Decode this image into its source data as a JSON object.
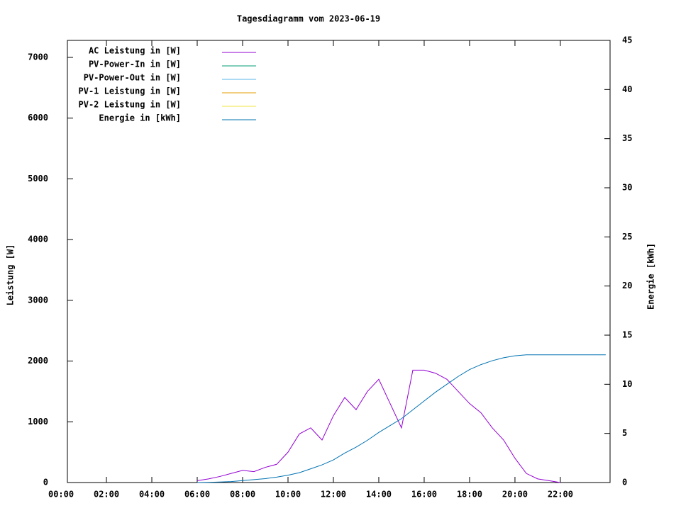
{
  "chart_data": {
    "type": "line",
    "title": "Tagesdiagramm vom 2023-06-19",
    "y_label": "Leistung [W]",
    "y2_label": "Energie [kWh]",
    "x": [
      6,
      6.5,
      7,
      7.5,
      8,
      8.5,
      9,
      9.5,
      10,
      10.5,
      11,
      11.5,
      12,
      12.5,
      13,
      13.5,
      14,
      14.5,
      15,
      15.5,
      16,
      16.5,
      17,
      17.5,
      18,
      18.5,
      19,
      19.5,
      20,
      20.5,
      21,
      21.5,
      22,
      23,
      24
    ],
    "xlim": [
      0.28,
      24.19
    ],
    "xticks": [
      {
        "value": 0,
        "label": "00:00"
      },
      {
        "value": 2,
        "label": "02:00"
      },
      {
        "value": 4,
        "label": "04:00"
      },
      {
        "value": 6,
        "label": "06:00"
      },
      {
        "value": 8,
        "label": "08:00"
      },
      {
        "value": 10,
        "label": "10:00"
      },
      {
        "value": 12,
        "label": "12:00"
      },
      {
        "value": 14,
        "label": "14:00"
      },
      {
        "value": 16,
        "label": "16:00"
      },
      {
        "value": 18,
        "label": "18:00"
      },
      {
        "value": 20,
        "label": "20:00"
      },
      {
        "value": 22,
        "label": "22:00"
      }
    ],
    "ylim": [
      0,
      7280
    ],
    "yticks": [
      0,
      1000,
      2000,
      3000,
      4000,
      5000,
      6000,
      7000
    ],
    "y2lim": [
      0,
      45
    ],
    "y2ticks": [
      0,
      5,
      10,
      15,
      20,
      25,
      30,
      35,
      40,
      45
    ],
    "legend": "top-left",
    "series": [
      {
        "name": "AC Leistung in [W]",
        "color": "#9400d3",
        "values": [
          30,
          60,
          100,
          150,
          200,
          180,
          250,
          300,
          500,
          800,
          900,
          700,
          1100,
          1400,
          1200,
          1500,
          1700,
          1300,
          900,
          1850,
          1850,
          1800,
          1700,
          1500,
          1300,
          1150,
          900,
          700,
          400,
          150,
          60,
          30,
          0,
          null,
          null
        ]
      },
      {
        "name": "PV-Power-In in [W]",
        "color": "#009e73",
        "values": [
          null,
          null,
          null,
          null,
          null,
          null,
          null,
          null,
          null,
          null,
          null,
          null,
          null,
          null,
          null,
          null,
          null,
          null,
          null,
          null,
          null,
          null,
          null,
          null,
          null,
          null,
          null,
          null,
          null,
          null,
          null,
          null,
          null,
          null,
          null
        ]
      },
      {
        "name": "PV-Power-Out in [W]",
        "color": "#56b4e9",
        "values": [
          null,
          null,
          null,
          null,
          null,
          null,
          null,
          null,
          null,
          null,
          null,
          null,
          null,
          null,
          null,
          null,
          null,
          null,
          null,
          null,
          null,
          null,
          null,
          null,
          null,
          null,
          null,
          null,
          null,
          null,
          null,
          null,
          null,
          null,
          null
        ]
      },
      {
        "name": "PV-1 Leistung in [W]",
        "color": "#e69f00",
        "values": [
          null,
          null,
          null,
          null,
          null,
          null,
          null,
          null,
          null,
          null,
          null,
          null,
          null,
          null,
          null,
          null,
          null,
          null,
          null,
          null,
          null,
          null,
          null,
          null,
          null,
          null,
          null,
          null,
          null,
          null,
          null,
          null,
          null,
          null,
          null
        ]
      },
      {
        "name": "PV-2 Leistung in [W]",
        "color": "#f0e442",
        "values": [
          null,
          null,
          null,
          null,
          null,
          null,
          null,
          null,
          null,
          null,
          null,
          null,
          null,
          null,
          null,
          null,
          null,
          null,
          null,
          null,
          null,
          null,
          null,
          null,
          null,
          null,
          null,
          null,
          null,
          null,
          null,
          null,
          null,
          null,
          null
        ]
      },
      {
        "name": "Energie in [kWh]",
        "color": "#0072b2",
        "axis": "y2",
        "values": [
          0,
          0.02,
          0.05,
          0.1,
          0.2,
          0.3,
          0.4,
          0.55,
          0.75,
          1.0,
          1.4,
          1.8,
          2.3,
          3.0,
          3.6,
          4.3,
          5.1,
          5.8,
          6.5,
          7.4,
          8.3,
          9.2,
          10.0,
          10.8,
          11.5,
          12.0,
          12.4,
          12.7,
          12.9,
          13.0,
          13.0,
          13.0,
          13.0,
          13.0,
          13.0
        ]
      }
    ]
  }
}
